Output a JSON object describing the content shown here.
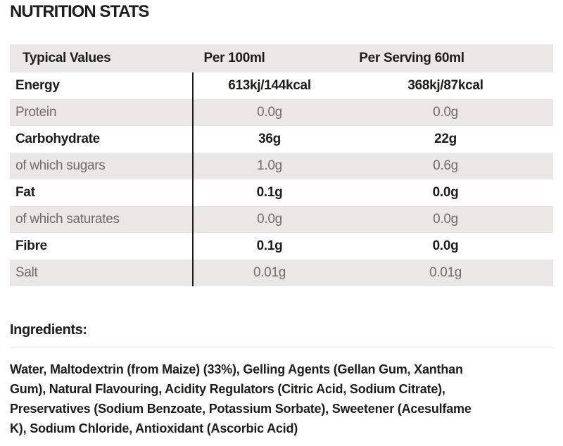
{
  "page": {
    "title": "NUTRITION STATS"
  },
  "table": {
    "headers": {
      "col1": "Typical Values",
      "col2": "Per 100ml",
      "col3": "Per Serving 60ml"
    },
    "rows": [
      {
        "label": "Energy",
        "per_100ml": "613kj/144kcal",
        "per_serving": "368kj/87kcal",
        "emphasis": true
      },
      {
        "label": "Protein",
        "per_100ml": "0.0g",
        "per_serving": "0.0g",
        "emphasis": false
      },
      {
        "label": "Carbohydrate",
        "per_100ml": "36g",
        "per_serving": "22g",
        "emphasis": true
      },
      {
        "label": "of which sugars",
        "per_100ml": "1.0g",
        "per_serving": "0.6g",
        "emphasis": false
      },
      {
        "label": "Fat",
        "per_100ml": "0.1g",
        "per_serving": "0.0g",
        "emphasis": true
      },
      {
        "label": "of which saturates",
        "per_100ml": "0.0g",
        "per_serving": "0.0g",
        "emphasis": false
      },
      {
        "label": "Fibre",
        "per_100ml": "0.1g",
        "per_serving": "0.0g",
        "emphasis": true
      },
      {
        "label": "Salt",
        "per_100ml": "0.01g",
        "per_serving": "0.01g",
        "emphasis": false
      }
    ]
  },
  "ingredients": {
    "heading": "Ingredients:",
    "lines": [
      "Water, Maltodextrin (from Maize) (33%), Gelling Agents (Gellan Gum, Xanthan",
      "Gum), Natural Flavouring, Acidity Regulators (Citric Acid, Sodium Citrate),",
      "Preservatives (Sodium Benzoate, Potassium Sorbate), Sweetener (Acesulfame",
      "K), Sodium Chloride, Antioxidant (Ascorbic Acid)"
    ]
  },
  "colors": {
    "text_dark": "#1d1d1b",
    "text_gray": "#6f6e6c",
    "row_shade_bg": "#e9e8e5",
    "header_bg": "#e9e8e5",
    "column_rule": "#1a1a1a",
    "divider": "#e6e5e3"
  }
}
